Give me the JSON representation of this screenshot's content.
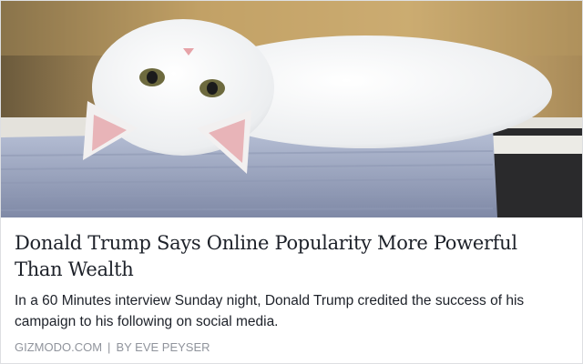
{
  "link_preview": {
    "image_alt_icon": "white-kitten-photo",
    "title": "Donald Trump Says Online Popularity More Powerful Than Wealth",
    "description": "In a 60 Minutes interview Sunday night, Donald Trump credited the success of his campaign to his following on social media.",
    "domain": "GIZMODO.COM",
    "separator": "|",
    "byline": "BY EVE PEYSER"
  }
}
